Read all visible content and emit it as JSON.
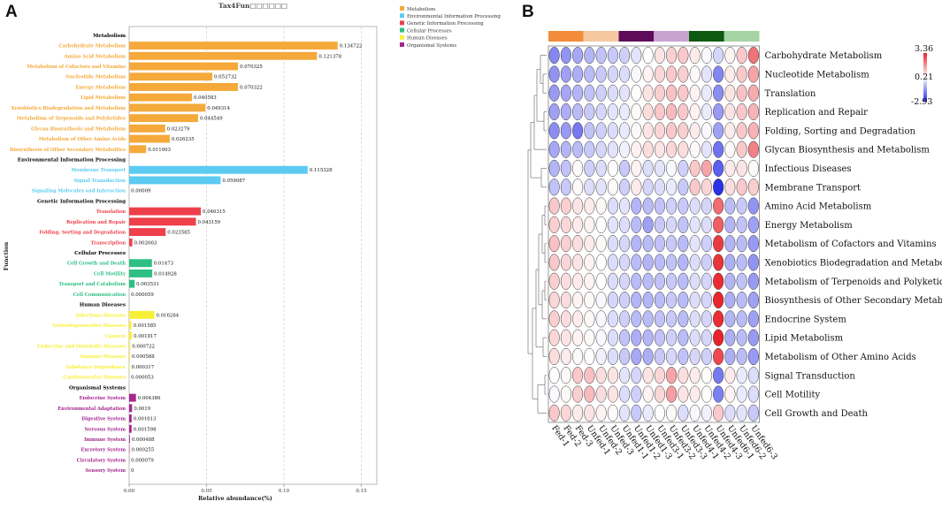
{
  "panel_labels": {
    "a": "A",
    "b": "B"
  },
  "chart_data": [
    {
      "type": "bar",
      "orientation": "horizontal",
      "title": "Tax4Fun□□□□□□",
      "xlabel": "Relative abundance(%)",
      "ylabel": "Function",
      "xlim": [
        0,
        0.16
      ],
      "xticks": [
        "0.00",
        "0.05",
        "0.10",
        "0.15"
      ],
      "grid": "vertical dashed",
      "legend_position": "top-right",
      "colors": {
        "Metabolism": "#f5a93a",
        "Environmental Information Processing": "#5bcbf2",
        "Genetic Information Processing": "#ee3f4b",
        "Cellular Processes": "#2dbf84",
        "Human Diseases": "#f7f035",
        "Organismal Systems": "#a6268f"
      },
      "groups": [
        {
          "name": "Metabolism",
          "items": [
            {
              "label": "Carbohydrate Metabolism",
              "value": 0.134722,
              "text": "0.134722"
            },
            {
              "label": "Amino Acid Metabolism",
              "value": 0.121378,
              "text": "0.121378"
            },
            {
              "label": "Metabolism of Cofactors and Vitamins",
              "value": 0.070325,
              "text": "0.070325"
            },
            {
              "label": "Nucleotide Metabolism",
              "value": 0.053732,
              "text": "0.053732"
            },
            {
              "label": "Energy Metabolism",
              "value": 0.070322,
              "text": "0.070322"
            },
            {
              "label": "Lipid Metabolism",
              "value": 0.040583,
              "text": "0.040583"
            },
            {
              "label": "Xenobiotics Biodegradation and Metabolism",
              "value": 0.049314,
              "text": "0.049314"
            },
            {
              "label": "Metabolism of Terpenoids and Polyketides",
              "value": 0.044549,
              "text": "0.044549"
            },
            {
              "label": "Glycan Biosynthesis and Metabolism",
              "value": 0.023279,
              "text": "0.023279"
            },
            {
              "label": "Metabolism of Other Amino Acids",
              "value": 0.026235,
              "text": "0.026235"
            },
            {
              "label": "Biosynthesis of Other Secondary Metabolites",
              "value": 0.011003,
              "text": "0.011003"
            }
          ]
        },
        {
          "name": "Environmental Information Processing",
          "items": [
            {
              "label": "Membrane Transport",
              "value": 0.115328,
              "text": "0.115328"
            },
            {
              "label": "Signal Transduction",
              "value": 0.059087,
              "text": "0.059087"
            },
            {
              "label": "Signaling Molecules and Interaction",
              "value": 9e-05,
              "text": "0.00009"
            }
          ]
        },
        {
          "name": "Genetic Information Processing",
          "items": [
            {
              "label": "Translation",
              "value": 0.046315,
              "text": "0.046315"
            },
            {
              "label": "Replication and Repair",
              "value": 0.043159,
              "text": "0.043159"
            },
            {
              "label": "Folding, Sorting and Degradation",
              "value": 0.023585,
              "text": "0.023585"
            },
            {
              "label": "Transcription",
              "value": 0.002063,
              "text": "0.002063"
            }
          ]
        },
        {
          "name": "Cellular Processes",
          "items": [
            {
              "label": "Cell Growth and Death",
              "value": 0.01473,
              "text": "0.01473"
            },
            {
              "label": "Cell Motility",
              "value": 0.014928,
              "text": "0.014928"
            },
            {
              "label": "Transport and Catabolism",
              "value": 0.003531,
              "text": "0.003531"
            },
            {
              "label": "Cell Communication",
              "value": 5.9e-05,
              "text": "0.000059"
            }
          ]
        },
        {
          "name": "Human Diseases",
          "items": [
            {
              "label": "Infectious Diseases",
              "value": 0.016284,
              "text": "0.016284"
            },
            {
              "label": "Neurodegenerative Diseases",
              "value": 0.001585,
              "text": "0.001585"
            },
            {
              "label": "Cancers",
              "value": 0.001817,
              "text": "0.001817"
            },
            {
              "label": "Endocrine and Metabolic Diseases",
              "value": 0.000722,
              "text": "0.000722"
            },
            {
              "label": "Immune Diseases",
              "value": 0.000588,
              "text": "0.000588"
            },
            {
              "label": "Substance Dependence",
              "value": 0.000317,
              "text": "0.000317"
            },
            {
              "label": "Cardiovascular Diseases",
              "value": 5.3e-05,
              "text": "0.000053"
            }
          ]
        },
        {
          "name": "Organismal Systems",
          "items": [
            {
              "label": "Endocrine System",
              "value": 0.004386,
              "text": "0.004386"
            },
            {
              "label": "Environmental Adaptation",
              "value": 0.0019,
              "text": "0.0019"
            },
            {
              "label": "Digestive System",
              "value": 0.001613,
              "text": "0.001613"
            },
            {
              "label": "Nervous System",
              "value": 0.001598,
              "text": "0.001598"
            },
            {
              "label": "Immune System",
              "value": 0.000488,
              "text": "0.000488"
            },
            {
              "label": "Excretory System",
              "value": 0.000255,
              "text": "0.000255"
            },
            {
              "label": "Circulatory System",
              "value": 7.9e-05,
              "text": "0.000079"
            },
            {
              "label": "Sensory System",
              "value": 0,
              "text": "0"
            }
          ]
        }
      ]
    },
    {
      "type": "heatmap",
      "color_scale": {
        "min": -2.93,
        "mid": 0.21,
        "max": 3.36,
        "min_label": "-2.93",
        "mid_label": "0.21",
        "max_label": "3.36",
        "low_color": "#2a2ee8",
        "mid_color": "#ffffff",
        "high_color": "#e8222a"
      },
      "columns": [
        "Fed-1",
        "Fed-2",
        "Fed-3",
        "Unfed-1",
        "Unfed-2",
        "Unfed-3",
        "Unfed1-1",
        "Unfed1-2",
        "Unfed1-3",
        "Unfed3-1",
        "Unfed3-2",
        "Unfed3-3",
        "Unfed4-1",
        "Unfed4-2",
        "Unfed4-3",
        "Unfed6-1",
        "Unfed6-2",
        "Unfed6-3"
      ],
      "column_groups": [
        {
          "color": "#f28c3a",
          "span": 3
        },
        {
          "color": "#f6c8a0",
          "span": 3
        },
        {
          "color": "#5e0c5a",
          "span": 3
        },
        {
          "color": "#c8a2d0",
          "span": 3
        },
        {
          "color": "#0e5a10",
          "span": 3
        },
        {
          "color": "#a6d3a3",
          "span": 3
        }
      ],
      "rows": [
        "Carbohydrate Metabolism",
        "Nucleotide Metabolism",
        "Translation",
        "Replication and Repair",
        "Folding, Sorting and Degradation",
        "Glycan Biosynthesis and Metabolism",
        "Infectious Diseases",
        "Membrane Transport",
        "Amino Acid Metabolism",
        "Energy Metabolism",
        "Metabolism of Cofactors and Vitamins",
        "Xenobiotics Biodegradation and Metabolism",
        "Metabolism of Terpenoids and Polyketides",
        "Biosynthesis of Other Secondary Metabolites",
        "Endocrine System",
        "Lipid Metabolism",
        "Metabolism of Other Amino Acids",
        "Signal Transduction",
        "Cell Motility",
        "Cell Growth and Death"
      ],
      "values": [
        [
          -1.6,
          -1.4,
          -1.1,
          -0.9,
          -0.7,
          -0.6,
          -0.5,
          -0.2,
          0.2,
          0.6,
          0.9,
          1.0,
          0.5,
          0.1,
          -0.4,
          0.4,
          1.0,
          2.2
        ],
        [
          -1.4,
          -1.2,
          -1.0,
          -0.8,
          -0.6,
          -0.4,
          -0.3,
          0.1,
          0.4,
          0.8,
          1.0,
          0.9,
          0.3,
          -0.2,
          -1.6,
          0.5,
          1.0,
          1.5
        ],
        [
          -1.3,
          -1.1,
          -0.9,
          -0.7,
          -0.5,
          -0.3,
          -0.2,
          0.2,
          0.6,
          0.9,
          1.1,
          1.0,
          0.4,
          -0.1,
          -1.5,
          0.6,
          1.1,
          1.4
        ],
        [
          -1.2,
          -1.0,
          -0.8,
          -0.6,
          -0.4,
          -0.2,
          -0.1,
          0.3,
          0.7,
          1.0,
          1.2,
          1.0,
          0.4,
          -0.1,
          -1.3,
          0.6,
          1.0,
          1.3
        ],
        [
          -1.5,
          -1.3,
          -1.8,
          -0.7,
          -0.5,
          -0.3,
          -0.1,
          0.3,
          0.6,
          0.8,
          1.0,
          0.9,
          0.5,
          0.1,
          -1.2,
          0.5,
          1.0,
          1.3
        ],
        [
          -1.1,
          -0.9,
          -0.8,
          -0.6,
          -0.4,
          -0.2,
          0.0,
          0.4,
          0.7,
          0.6,
          0.8,
          0.7,
          0.3,
          -0.2,
          -1.9,
          0.3,
          1.0,
          2.0
        ],
        [
          -0.9,
          -0.7,
          0.3,
          -0.5,
          -0.3,
          0.2,
          -0.6,
          0.4,
          -0.3,
          -0.2,
          0.1,
          -0.5,
          1.0,
          1.5,
          -2.2,
          0.5,
          0.6,
          0.3
        ],
        [
          -0.7,
          -0.6,
          0.3,
          -0.3,
          -0.2,
          0.3,
          -0.5,
          0.5,
          -0.4,
          -0.3,
          -0.1,
          -0.6,
          1.0,
          0.8,
          -2.9,
          0.7,
          1.0,
          0.9
        ],
        [
          1.0,
          0.9,
          0.6,
          0.5,
          0.3,
          -0.3,
          -0.2,
          -0.9,
          -0.8,
          -0.7,
          -0.5,
          -0.6,
          -0.3,
          -0.4,
          2.3,
          -0.8,
          -0.6,
          -1.4
        ],
        [
          0.9,
          0.8,
          0.5,
          0.4,
          0.2,
          -0.2,
          -0.3,
          -0.8,
          -1.2,
          -0.6,
          -0.4,
          -0.7,
          -0.2,
          -0.3,
          2.5,
          -0.9,
          -0.7,
          -1.2
        ],
        [
          1.1,
          0.9,
          0.7,
          0.5,
          0.3,
          -0.3,
          -0.4,
          -0.9,
          -0.8,
          -0.7,
          -0.6,
          -0.8,
          -0.2,
          -0.5,
          3.0,
          -0.9,
          -0.8,
          -1.3
        ],
        [
          1.0,
          0.8,
          0.6,
          0.4,
          0.2,
          -0.3,
          -0.4,
          -0.8,
          -0.9,
          -0.8,
          -0.7,
          -0.9,
          -0.3,
          -0.5,
          3.1,
          -1.0,
          -0.8,
          -1.4
        ],
        [
          0.9,
          0.7,
          0.5,
          0.4,
          0.2,
          -0.3,
          -0.4,
          -0.8,
          -0.8,
          -0.7,
          -0.6,
          -0.8,
          -0.3,
          -0.4,
          3.2,
          -0.9,
          -0.7,
          -1.3
        ],
        [
          0.8,
          0.7,
          0.4,
          0.3,
          0.1,
          -0.4,
          -0.5,
          -0.9,
          -0.9,
          -0.8,
          -0.6,
          -0.8,
          -0.3,
          -0.4,
          3.3,
          -1.0,
          -0.8,
          -1.2
        ],
        [
          0.9,
          0.7,
          0.5,
          0.3,
          0.1,
          -0.3,
          -0.5,
          -0.8,
          -0.8,
          -0.7,
          -0.6,
          -0.8,
          -0.3,
          -0.4,
          3.2,
          -0.9,
          -0.8,
          -1.2
        ],
        [
          0.8,
          0.6,
          0.4,
          0.3,
          0.1,
          -0.3,
          -0.7,
          -1.0,
          -0.9,
          -0.7,
          -0.5,
          -0.8,
          -0.3,
          -0.4,
          3.36,
          -1.0,
          -0.8,
          -1.3
        ],
        [
          0.7,
          0.5,
          0.3,
          0.2,
          0.0,
          -0.3,
          -0.6,
          -1.1,
          -1.0,
          -0.6,
          -0.4,
          -0.7,
          -0.4,
          -0.5,
          2.8,
          -1.0,
          -0.8,
          -1.3
        ],
        [
          0.2,
          0.3,
          1.0,
          1.1,
          0.7,
          0.6,
          -0.2,
          -0.4,
          0.6,
          0.8,
          1.5,
          0.7,
          0.5,
          0.2,
          -1.8,
          0.5,
          -0.1,
          -0.3
        ],
        [
          0.1,
          0.3,
          0.9,
          1.2,
          0.7,
          0.6,
          -0.3,
          -0.5,
          0.4,
          0.8,
          1.6,
          0.6,
          0.5,
          0.2,
          -1.7,
          0.4,
          -0.1,
          -0.3
        ],
        [
          1.0,
          0.8,
          0.5,
          0.6,
          0.4,
          0.3,
          -0.2,
          -0.6,
          -0.1,
          0.2,
          0.3,
          -0.3,
          0.1,
          0.0,
          1.0,
          -0.3,
          -0.2,
          -0.6
        ]
      ]
    }
  ]
}
